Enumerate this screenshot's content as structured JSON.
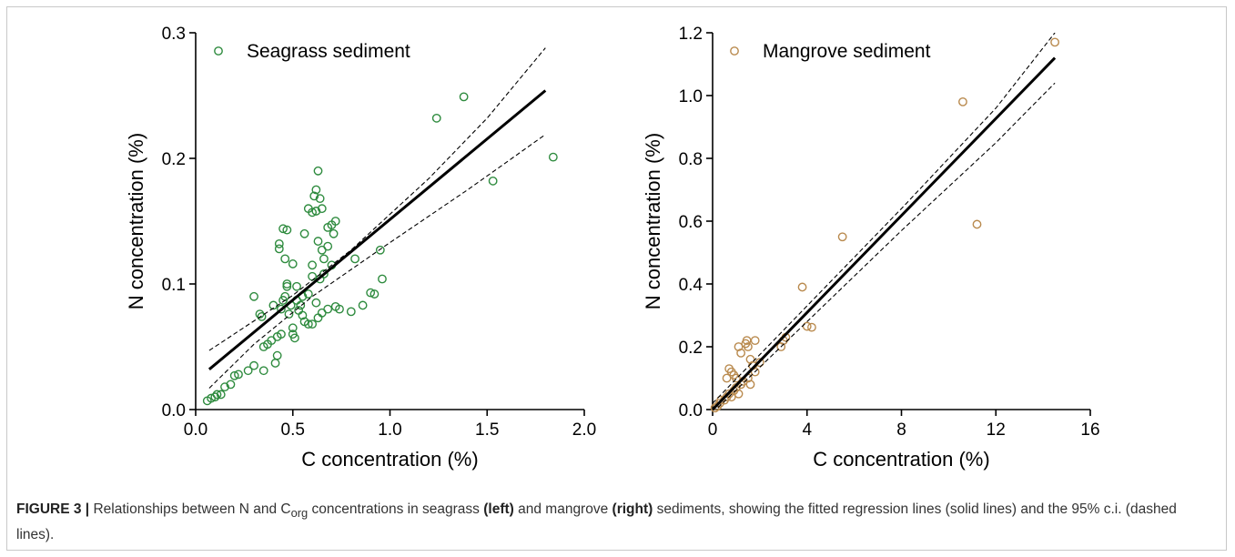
{
  "chart_data": [
    {
      "type": "scatter",
      "xlabel": "C concentration (%)",
      "ylabel": "N concentration (%)",
      "xlim": [
        0,
        2.0
      ],
      "ylim": [
        0,
        0.3
      ],
      "xticks": [
        "0.0",
        "0.5",
        "1.0",
        "1.5",
        "2.0"
      ],
      "yticks": [
        "0.0",
        "0.1",
        "0.2",
        "0.3"
      ],
      "legend": "top-left",
      "marker_color": "#2e8b3e",
      "series": [
        {
          "name": "Seagrass sediment",
          "points": [
            [
              0.06,
              0.007
            ],
            [
              0.08,
              0.009
            ],
            [
              0.1,
              0.01
            ],
            [
              0.11,
              0.012
            ],
            [
              0.13,
              0.012
            ],
            [
              0.15,
              0.018
            ],
            [
              0.18,
              0.02
            ],
            [
              0.2,
              0.027
            ],
            [
              0.22,
              0.028
            ],
            [
              0.27,
              0.031
            ],
            [
              0.3,
              0.035
            ],
            [
              0.35,
              0.031
            ],
            [
              0.35,
              0.05
            ],
            [
              0.37,
              0.052
            ],
            [
              0.39,
              0.055
            ],
            [
              0.41,
              0.037
            ],
            [
              0.42,
              0.043
            ],
            [
              0.42,
              0.058
            ],
            [
              0.44,
              0.06
            ],
            [
              0.44,
              0.08
            ],
            [
              0.45,
              0.087
            ],
            [
              0.46,
              0.09
            ],
            [
              0.47,
              0.1
            ],
            [
              0.47,
              0.098
            ],
            [
              0.48,
              0.076
            ],
            [
              0.49,
              0.083
            ],
            [
              0.5,
              0.06
            ],
            [
              0.5,
              0.065
            ],
            [
              0.51,
              0.057
            ],
            [
              0.52,
              0.087
            ],
            [
              0.53,
              0.079
            ],
            [
              0.55,
              0.075
            ],
            [
              0.56,
              0.07
            ],
            [
              0.58,
              0.068
            ],
            [
              0.6,
              0.068
            ],
            [
              0.63,
              0.073
            ],
            [
              0.65,
              0.077
            ],
            [
              0.68,
              0.08
            ],
            [
              0.72,
              0.082
            ],
            [
              0.74,
              0.08
            ],
            [
              0.8,
              0.078
            ],
            [
              0.86,
              0.083
            ],
            [
              0.9,
              0.093
            ],
            [
              0.92,
              0.092
            ],
            [
              0.96,
              0.104
            ],
            [
              0.3,
              0.09
            ],
            [
              0.33,
              0.076
            ],
            [
              0.34,
              0.074
            ],
            [
              0.4,
              0.083
            ],
            [
              0.43,
              0.128
            ],
            [
              0.43,
              0.132
            ],
            [
              0.45,
              0.144
            ],
            [
              0.46,
              0.12
            ],
            [
              0.47,
              0.143
            ],
            [
              0.5,
              0.116
            ],
            [
              0.52,
              0.098
            ],
            [
              0.55,
              0.09
            ],
            [
              0.56,
              0.14
            ],
            [
              0.58,
              0.16
            ],
            [
              0.6,
              0.157
            ],
            [
              0.61,
              0.17
            ],
            [
              0.62,
              0.175
            ],
            [
              0.63,
              0.19
            ],
            [
              0.64,
              0.168
            ],
            [
              0.65,
              0.16
            ],
            [
              0.62,
              0.158
            ],
            [
              0.6,
              0.115
            ],
            [
              0.6,
              0.106
            ],
            [
              0.63,
              0.134
            ],
            [
              0.65,
              0.127
            ],
            [
              0.66,
              0.12
            ],
            [
              0.68,
              0.145
            ],
            [
              0.68,
              0.13
            ],
            [
              0.7,
              0.147
            ],
            [
              0.71,
              0.14
            ],
            [
              0.72,
              0.15
            ],
            [
              0.64,
              0.104
            ],
            [
              0.66,
              0.108
            ],
            [
              0.7,
              0.115
            ],
            [
              0.58,
              0.092
            ],
            [
              0.54,
              0.083
            ],
            [
              0.62,
              0.085
            ],
            [
              0.82,
              0.12
            ],
            [
              0.95,
              0.127
            ],
            [
              1.24,
              0.232
            ],
            [
              1.38,
              0.249
            ],
            [
              1.53,
              0.182
            ],
            [
              1.84,
              0.201
            ]
          ]
        }
      ],
      "fit_line": {
        "x": [
          0.07,
          1.8
        ],
        "y": [
          0.032,
          0.254
        ]
      },
      "ci_upper": {
        "x": [
          0.07,
          0.5,
          0.8,
          1.2,
          1.5,
          1.8
        ],
        "y": [
          0.047,
          0.091,
          0.127,
          0.184,
          0.232,
          0.288
        ]
      },
      "ci_lower": {
        "x": [
          0.07,
          0.3,
          0.6,
          1.0,
          1.4,
          1.8
        ],
        "y": [
          0.017,
          0.052,
          0.09,
          0.133,
          0.175,
          0.219
        ]
      }
    },
    {
      "type": "scatter",
      "xlabel": "C concentration (%)",
      "ylabel": "N concentration (%)",
      "xlim": [
        0,
        16
      ],
      "ylim": [
        0,
        1.2
      ],
      "xticks": [
        "0",
        "4",
        "8",
        "12",
        "16"
      ],
      "yticks": [
        "0.0",
        "0.2",
        "0.4",
        "0.6",
        "0.8",
        "1.0",
        "1.2"
      ],
      "legend": "top-left",
      "marker_color": "#b98a4e",
      "series": [
        {
          "name": "Mangrove sediment",
          "points": [
            [
              0.1,
              0.005
            ],
            [
              0.2,
              0.01
            ],
            [
              0.3,
              0.02
            ],
            [
              0.35,
              0.03
            ],
            [
              0.5,
              0.03
            ],
            [
              0.6,
              0.04
            ],
            [
              0.7,
              0.05
            ],
            [
              0.8,
              0.04
            ],
            [
              0.9,
              0.06
            ],
            [
              1.0,
              0.07
            ],
            [
              1.1,
              0.05
            ],
            [
              1.2,
              0.08
            ],
            [
              1.3,
              0.09
            ],
            [
              0.8,
              0.12
            ],
            [
              0.9,
              0.11
            ],
            [
              1.0,
              0.1
            ],
            [
              1.1,
              0.2
            ],
            [
              1.2,
              0.18
            ],
            [
              1.4,
              0.21
            ],
            [
              1.45,
              0.22
            ],
            [
              1.5,
              0.2
            ],
            [
              1.6,
              0.16
            ],
            [
              1.7,
              0.14
            ],
            [
              1.8,
              0.22
            ],
            [
              1.8,
              0.12
            ],
            [
              2.0,
              0.15
            ],
            [
              0.7,
              0.13
            ],
            [
              0.6,
              0.1
            ],
            [
              1.5,
              0.1
            ],
            [
              1.6,
              0.08
            ],
            [
              2.9,
              0.2
            ],
            [
              3.0,
              0.22
            ],
            [
              3.1,
              0.23
            ],
            [
              3.8,
              0.39
            ],
            [
              4.0,
              0.265
            ],
            [
              4.2,
              0.262
            ],
            [
              5.5,
              0.55
            ],
            [
              10.6,
              0.98
            ],
            [
              11.2,
              0.59
            ],
            [
              14.5,
              1.17
            ]
          ]
        }
      ],
      "fit_line": {
        "x": [
          0.0,
          14.5
        ],
        "y": [
          0.0,
          1.12
        ]
      },
      "ci_upper": {
        "x": [
          0.0,
          4.0,
          8.0,
          12.0,
          14.5
        ],
        "y": [
          0.02,
          0.33,
          0.64,
          0.96,
          1.2
        ]
      },
      "ci_lower": {
        "x": [
          0.0,
          4.0,
          8.0,
          12.0,
          14.5
        ],
        "y": [
          -0.01,
          0.28,
          0.57,
          0.85,
          1.04
        ]
      }
    }
  ],
  "caption": {
    "figure_label": "FIGURE 3 |",
    "text_1": " Relationships between N and C",
    "subscript": "org",
    "text_2": " concentrations in seagrass ",
    "bold_1": "(left)",
    "text_3": " and mangrove ",
    "bold_2": "(right)",
    "text_4": " sediments, showing the fitted regression lines (solid lines) and the 95% c.i. (dashed lines)."
  }
}
